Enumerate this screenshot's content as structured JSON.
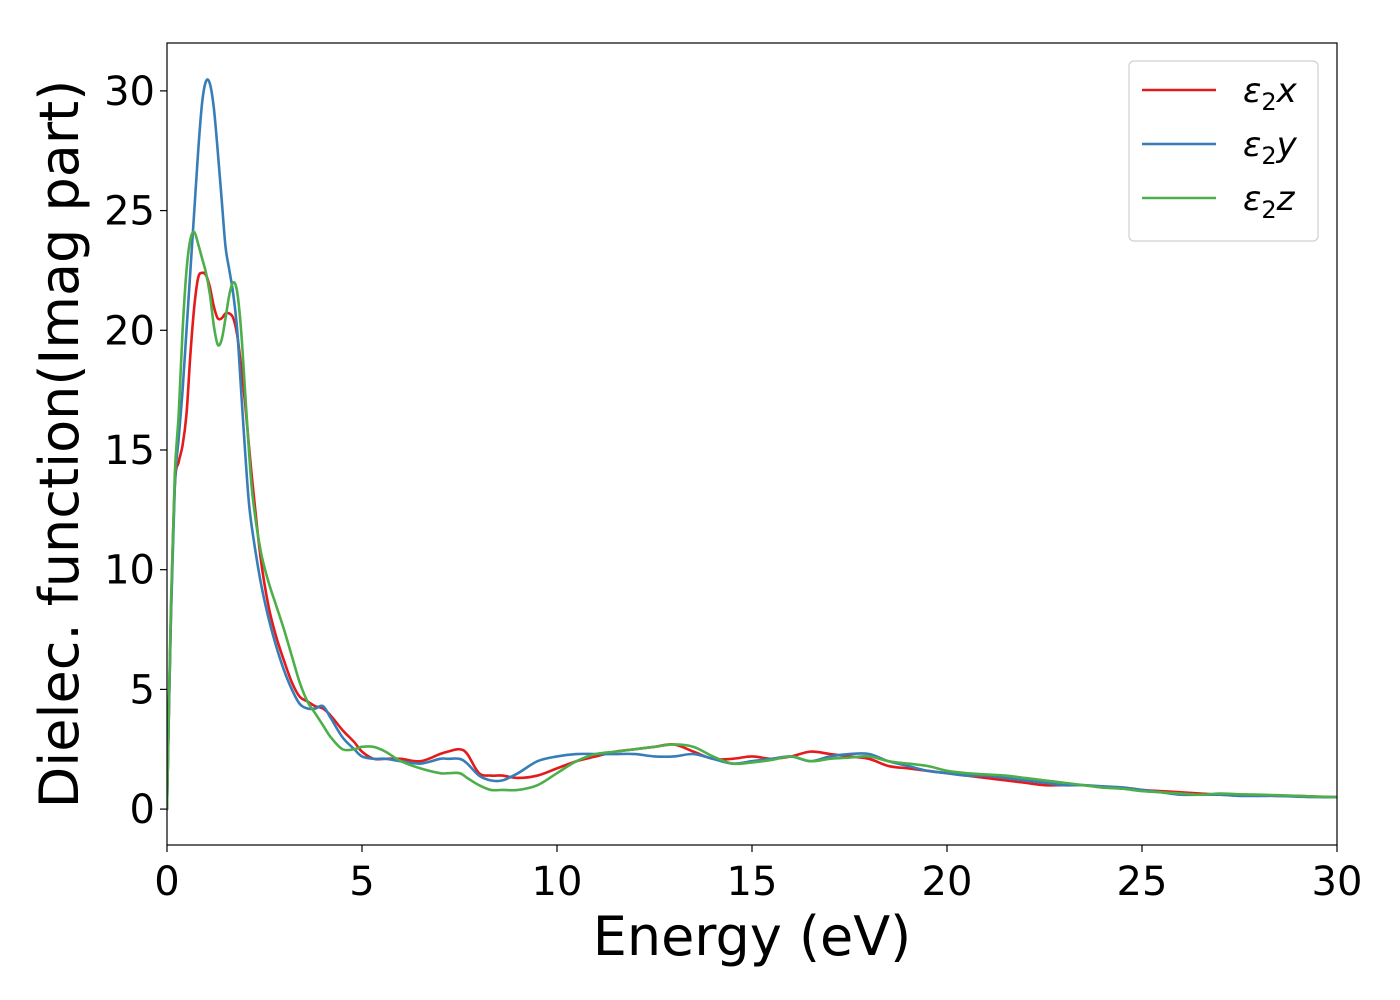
{
  "chart_data": {
    "type": "line",
    "xlabel": "Energy (eV)",
    "ylabel": "Dielec. function(Imag part)",
    "xlim": [
      0,
      30
    ],
    "ylim": [
      -1.5,
      32
    ],
    "xticks": [
      0,
      5,
      10,
      15,
      20,
      25,
      30
    ],
    "yticks": [
      0,
      5,
      10,
      15,
      20,
      25,
      30
    ],
    "grid": false,
    "legend_position": "top-right",
    "series": [
      {
        "name": "ε₂x",
        "legend_base": "ε",
        "legend_sub": "2",
        "legend_suffix": "x",
        "color": "#e41a1c",
        "x": [
          0,
          0.1,
          0.2,
          0.3,
          0.4,
          0.5,
          0.6,
          0.7,
          0.8,
          0.9,
          1.0,
          1.1,
          1.2,
          1.3,
          1.4,
          1.5,
          1.6,
          1.7,
          1.8,
          1.9,
          2.0,
          2.1,
          2.2,
          2.4,
          2.6,
          2.8,
          3.0,
          3.2,
          3.4,
          3.6,
          3.8,
          4.0,
          4.2,
          4.5,
          4.8,
          5.0,
          5.3,
          5.6,
          6.0,
          6.5,
          7.0,
          7.2,
          7.5,
          7.7,
          8.0,
          8.3,
          8.6,
          9.0,
          9.5,
          10.0,
          10.5,
          11.0,
          11.5,
          12.0,
          12.5,
          13.0,
          13.5,
          14.0,
          14.5,
          15.0,
          15.5,
          16.0,
          16.5,
          17.0,
          17.5,
          18.0,
          18.5,
          19.0,
          19.5,
          20.0,
          20.5,
          21.0,
          21.5,
          22.0,
          22.5,
          23.0,
          23.5,
          24.0,
          24.5,
          25.0,
          25.5,
          26.0,
          26.5,
          27.0,
          27.5,
          28.0,
          28.5,
          29.0,
          29.5,
          30.0
        ],
        "y": [
          0,
          8,
          13.5,
          14.5,
          15.2,
          16.5,
          19.0,
          21.0,
          22.2,
          22.4,
          22.3,
          21.8,
          21.0,
          20.5,
          20.5,
          20.7,
          20.7,
          20.5,
          19.8,
          18.5,
          17.0,
          15.2,
          13.5,
          10.5,
          8.5,
          7.2,
          6.2,
          5.3,
          4.7,
          4.5,
          4.3,
          4.2,
          3.9,
          3.3,
          2.8,
          2.4,
          2.1,
          2.1,
          2.1,
          2.0,
          2.3,
          2.4,
          2.5,
          2.3,
          1.5,
          1.4,
          1.4,
          1.3,
          1.4,
          1.7,
          2.0,
          2.2,
          2.4,
          2.5,
          2.6,
          2.7,
          2.4,
          2.1,
          2.1,
          2.2,
          2.1,
          2.2,
          2.4,
          2.3,
          2.2,
          2.1,
          1.8,
          1.7,
          1.6,
          1.5,
          1.4,
          1.3,
          1.2,
          1.1,
          1.0,
          1.0,
          1.0,
          0.9,
          0.9,
          0.8,
          0.75,
          0.7,
          0.65,
          0.6,
          0.6,
          0.58,
          0.55,
          0.55,
          0.52,
          0.5
        ]
      },
      {
        "name": "ε₂y",
        "legend_base": "ε",
        "legend_sub": "2",
        "legend_suffix": "y",
        "color": "#377eb8",
        "x": [
          0,
          0.1,
          0.2,
          0.3,
          0.4,
          0.5,
          0.6,
          0.7,
          0.8,
          0.9,
          1.0,
          1.1,
          1.2,
          1.3,
          1.4,
          1.5,
          1.6,
          1.7,
          1.8,
          1.9,
          2.0,
          2.1,
          2.2,
          2.4,
          2.6,
          2.8,
          3.0,
          3.2,
          3.4,
          3.6,
          3.8,
          4.0,
          4.2,
          4.5,
          4.8,
          5.0,
          5.3,
          5.6,
          6.0,
          6.5,
          7.0,
          7.2,
          7.5,
          7.7,
          8.0,
          8.3,
          8.6,
          9.0,
          9.5,
          10.0,
          10.5,
          11.0,
          11.5,
          12.0,
          12.5,
          13.0,
          13.5,
          14.0,
          14.5,
          15.0,
          15.5,
          16.0,
          16.5,
          17.0,
          17.5,
          18.0,
          18.5,
          19.0,
          19.5,
          20.0,
          20.5,
          21.0,
          21.5,
          22.0,
          22.5,
          23.0,
          23.5,
          24.0,
          24.5,
          25.0,
          25.5,
          26.0,
          26.5,
          27.0,
          27.5,
          28.0,
          28.5,
          29.0,
          29.5,
          30.0
        ],
        "y": [
          0,
          8,
          13.5,
          15.5,
          17.5,
          20.0,
          22.5,
          25.0,
          27.5,
          29.5,
          30.4,
          30.3,
          29.3,
          27.5,
          25.5,
          23.5,
          22.5,
          21.5,
          20.0,
          17.5,
          15.0,
          12.8,
          11.5,
          9.5,
          8.0,
          6.8,
          5.8,
          5.0,
          4.4,
          4.2,
          4.2,
          4.3,
          3.8,
          3.0,
          2.5,
          2.2,
          2.1,
          2.1,
          2.0,
          1.9,
          2.1,
          2.1,
          2.1,
          1.9,
          1.4,
          1.2,
          1.2,
          1.5,
          2.0,
          2.2,
          2.3,
          2.3,
          2.3,
          2.3,
          2.2,
          2.2,
          2.3,
          2.1,
          1.9,
          2.0,
          2.1,
          2.2,
          2.0,
          2.2,
          2.3,
          2.3,
          2.0,
          1.8,
          1.6,
          1.5,
          1.4,
          1.4,
          1.3,
          1.2,
          1.1,
          1.0,
          1.0,
          0.95,
          0.9,
          0.8,
          0.7,
          0.6,
          0.6,
          0.6,
          0.55,
          0.55,
          0.55,
          0.52,
          0.5,
          0.5
        ]
      },
      {
        "name": "ε₂z",
        "legend_base": "ε",
        "legend_sub": "2",
        "legend_suffix": "z",
        "color": "#4daf4a",
        "x": [
          0,
          0.1,
          0.2,
          0.3,
          0.4,
          0.5,
          0.6,
          0.7,
          0.8,
          0.9,
          1.0,
          1.1,
          1.2,
          1.3,
          1.4,
          1.5,
          1.6,
          1.7,
          1.8,
          1.9,
          2.0,
          2.1,
          2.2,
          2.4,
          2.6,
          2.8,
          3.0,
          3.2,
          3.4,
          3.6,
          3.8,
          4.0,
          4.2,
          4.5,
          4.8,
          5.0,
          5.3,
          5.6,
          6.0,
          6.5,
          7.0,
          7.2,
          7.5,
          7.7,
          8.0,
          8.3,
          8.6,
          9.0,
          9.5,
          10.0,
          10.5,
          11.0,
          11.5,
          12.0,
          12.5,
          13.0,
          13.5,
          14.0,
          14.5,
          15.0,
          15.5,
          16.0,
          16.5,
          17.0,
          17.5,
          18.0,
          18.5,
          19.0,
          19.5,
          20.0,
          20.5,
          21.0,
          21.5,
          22.0,
          22.5,
          23.0,
          23.5,
          24.0,
          24.5,
          25.0,
          25.5,
          26.0,
          26.5,
          27.0,
          27.5,
          28.0,
          28.5,
          29.0,
          29.5,
          30.0
        ],
        "y": [
          0,
          8.5,
          14.0,
          16.5,
          20.0,
          22.5,
          23.8,
          24.1,
          23.6,
          23.0,
          22.4,
          21.5,
          20.2,
          19.4,
          19.6,
          20.5,
          21.5,
          22.0,
          21.6,
          20.0,
          17.5,
          15.0,
          13.0,
          10.8,
          9.5,
          8.5,
          7.5,
          6.4,
          5.3,
          4.5,
          4.0,
          3.5,
          3.0,
          2.5,
          2.5,
          2.6,
          2.6,
          2.4,
          2.0,
          1.7,
          1.5,
          1.5,
          1.5,
          1.3,
          1.0,
          0.8,
          0.8,
          0.8,
          1.0,
          1.5,
          2.0,
          2.3,
          2.4,
          2.5,
          2.6,
          2.7,
          2.6,
          2.2,
          1.9,
          1.95,
          2.05,
          2.2,
          2.0,
          2.1,
          2.15,
          2.2,
          2.0,
          1.9,
          1.8,
          1.6,
          1.5,
          1.45,
          1.4,
          1.3,
          1.2,
          1.1,
          1.0,
          0.9,
          0.85,
          0.75,
          0.7,
          0.65,
          0.6,
          0.65,
          0.62,
          0.6,
          0.58,
          0.55,
          0.52,
          0.5
        ]
      }
    ]
  }
}
